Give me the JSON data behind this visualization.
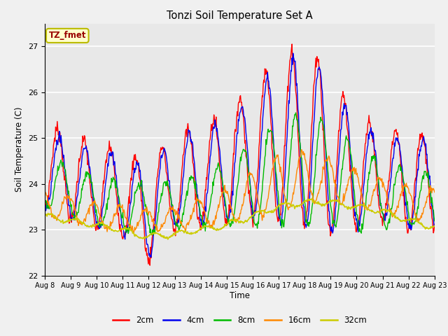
{
  "title": "Tonzi Soil Temperature Set A",
  "xlabel": "Time",
  "ylabel": "Soil Temperature (C)",
  "ylim": [
    22.0,
    27.5
  ],
  "annotation_text": "TZ_fmet",
  "annotation_color": "#990000",
  "annotation_bg": "#ffffcc",
  "annotation_border": "#bbbb00",
  "fig_bg": "#f0f0f0",
  "plot_bg": "#e8e8e8",
  "colors": {
    "2cm": "#ff0000",
    "4cm": "#0000ee",
    "8cm": "#00bb00",
    "16cm": "#ff8800",
    "32cm": "#cccc00"
  },
  "legend_labels": [
    "2cm",
    "4cm",
    "8cm",
    "16cm",
    "32cm"
  ],
  "xtick_labels": [
    "Aug 8",
    "Aug 9",
    "Aug 10",
    "Aug 11",
    "Aug 12",
    "Aug 13",
    "Aug 14",
    "Aug 15",
    "Aug 16",
    "Aug 17",
    "Aug 18",
    "Aug 19",
    "Aug 20",
    "Aug 21",
    "Aug 22",
    "Aug 23"
  ]
}
